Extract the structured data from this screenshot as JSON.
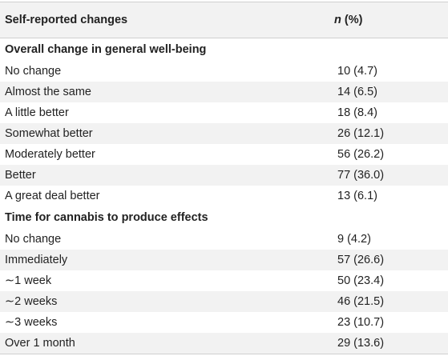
{
  "header": {
    "col1": "Self-reported changes",
    "col2_n": "n",
    "col2_rest": " (%)"
  },
  "sections": [
    {
      "title": "Overall change in general well-being",
      "rows": [
        {
          "label": "No change",
          "value": "10 (4.7)"
        },
        {
          "label": "Almost the same",
          "value": "14 (6.5)"
        },
        {
          "label": "A little better",
          "value": "18 (8.4)"
        },
        {
          "label": "Somewhat better",
          "value": "26 (12.1)"
        },
        {
          "label": "Moderately better",
          "value": "56 (26.2)"
        },
        {
          "label": "Better",
          "value": "77 (36.0)"
        },
        {
          "label": "A great deal better",
          "value": "13 (6.1)"
        }
      ]
    },
    {
      "title": "Time for cannabis to produce effects",
      "rows": [
        {
          "label": "No change",
          "value": "9 (4.2)"
        },
        {
          "label": "Immediately",
          "value": "57 (26.6)"
        },
        {
          "label": "∼1 week",
          "value": "50 (23.4)"
        },
        {
          "label": "∼2 weeks",
          "value": "46 (21.5)"
        },
        {
          "label": "∼3 weeks",
          "value": "23 (10.7)"
        },
        {
          "label": "Over 1 month",
          "value": "29 (13.6)"
        }
      ]
    }
  ]
}
